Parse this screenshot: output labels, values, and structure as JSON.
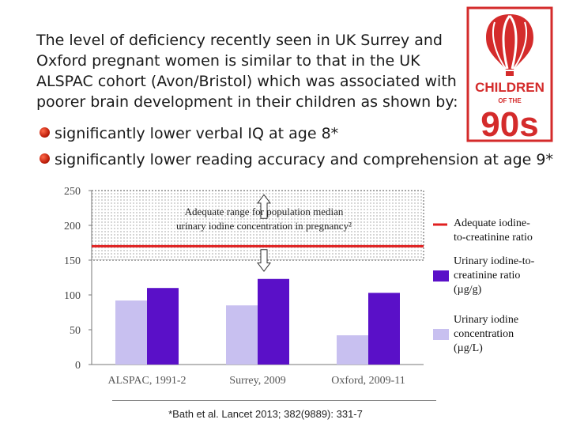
{
  "intro": "The level of deficiency recently seen in UK Surrey and Oxford pregnant women is similar to that in the UK ALSPAC cohort (Avon/Bristol) which was associated with poorer brain development in their children as shown by:",
  "bullets": [
    "significantly lower verbal IQ at age 8*",
    "significantly lower reading accuracy and comprehension at age 9*"
  ],
  "logo": {
    "line1": "CHILDREN",
    "line2": "OF THE",
    "line3": "90s",
    "color": "#d42b2b"
  },
  "reference": "*Bath et al. Lancet 2013; 382(9889): 331-7",
  "chart_data": {
    "type": "bar",
    "categories": [
      "ALSPAC, 1991-2",
      "Surrey, 2009",
      "Oxford, 2009-11"
    ],
    "series": [
      {
        "name": "Urinary iodine concentration (µg/L)",
        "values": [
          92,
          85,
          42
        ],
        "color": "#c8c0f0"
      },
      {
        "name": "Urinary iodine-to-creatinine ratio (µg/g)",
        "values": [
          110,
          123,
          103
        ],
        "color": "#5a10c8"
      }
    ],
    "ylim": [
      0,
      250
    ],
    "yticks": [
      0,
      50,
      100,
      150,
      200,
      250
    ],
    "adequate_range": [
      150,
      250
    ],
    "adequate_label": [
      "Adequate range for population median",
      "urinary iodine concentration in pregnancy²"
    ],
    "reference_line": {
      "value": 170,
      "color": "#e02020"
    },
    "legend": [
      {
        "label": [
          "Adequate iodine-",
          "to-creatinine ratio"
        ],
        "kind": "line",
        "color": "#e02020"
      },
      {
        "label": [
          "Urinary iodine-to-",
          "creatinine ratio",
          "(µg/g)"
        ],
        "kind": "box",
        "color": "#5a10c8"
      },
      {
        "label": [
          "Urinary iodine",
          "concentration",
          "(µg/L)"
        ],
        "kind": "box",
        "color": "#c8c0f0"
      }
    ],
    "grid": false,
    "legend_position": "right"
  }
}
